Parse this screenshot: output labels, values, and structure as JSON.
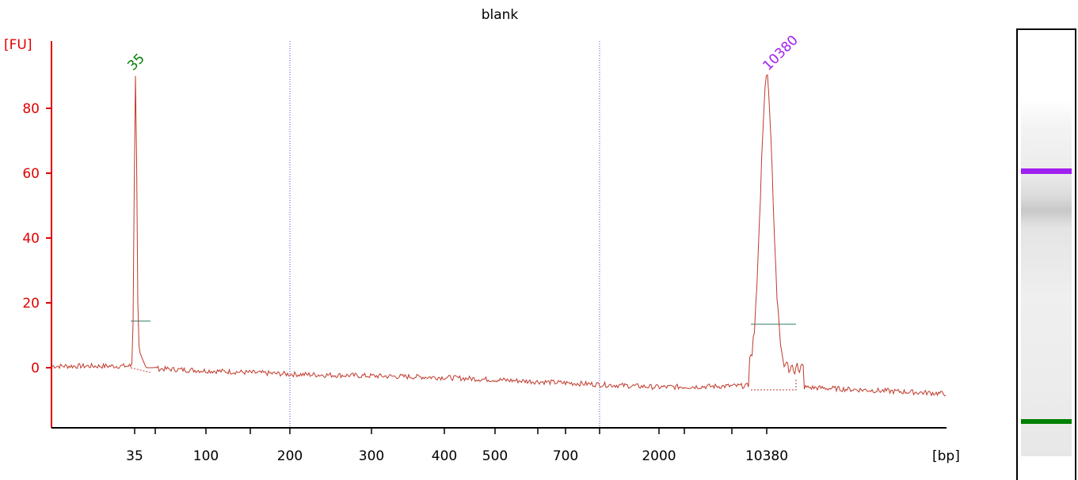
{
  "colors": {
    "trace": "#c0392b",
    "axis": "#e00000",
    "baseline_marker": "#2e7d6b",
    "peak_label_1": "#008000",
    "peak_label_2": "#a020f0",
    "gridline": "#4a4ae0"
  },
  "chart_data": {
    "type": "line",
    "title": "blank",
    "ylabel": "[FU]",
    "xlabel": "[bp]",
    "ylim": [
      -18,
      100
    ],
    "y_ticks": [
      0,
      20,
      40,
      60,
      80
    ],
    "x_tick_labels": [
      "35",
      "100",
      "200",
      "300",
      "400",
      "500",
      "700",
      "2000",
      "10380"
    ],
    "x_unlabeled_ticks": 6,
    "dotted_gridlines_at": [
      "200",
      "1000"
    ],
    "grid": false,
    "series": [
      {
        "points": [
          {
            "bp": "start",
            "fu": 0.5
          },
          {
            "bp": "35",
            "fu": 0.5
          },
          {
            "bp": "35",
            "fu": 90
          },
          {
            "bp": "35",
            "fu": 0
          },
          {
            "bp": "200",
            "fu": -2
          },
          {
            "bp": "300",
            "fu": -2.5
          },
          {
            "bp": "400",
            "fu": -3
          },
          {
            "bp": "500",
            "fu": -4
          },
          {
            "bp": "700",
            "fu": -5
          },
          {
            "bp": "2000",
            "fu": -6
          },
          {
            "bp": "10380",
            "fu": -5.5
          },
          {
            "bp": "10380",
            "fu": 90
          },
          {
            "bp": "10380",
            "fu": -6
          },
          {
            "bp": "end",
            "fu": -8
          }
        ]
      }
    ],
    "peaks": [
      {
        "label": "35",
        "height": 90,
        "color": "#008000"
      },
      {
        "label": "10380",
        "height": 90,
        "color": "#a020f0"
      }
    ]
  },
  "gel": {
    "bands": [
      {
        "label": "10380",
        "color": "#a020f0"
      },
      {
        "label": "35",
        "color": "#008000"
      }
    ]
  }
}
